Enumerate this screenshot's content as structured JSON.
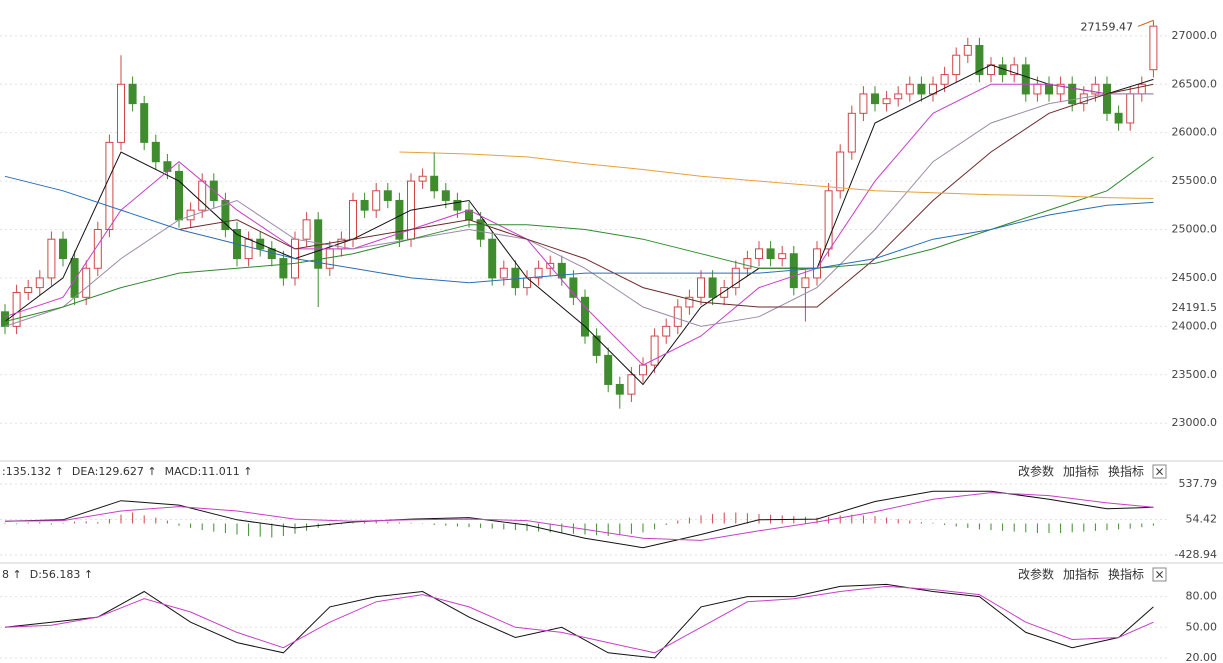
{
  "chart_data": [
    {
      "type": "candlestick",
      "up_color": "#d0474a",
      "down_color": "#3f8c2e",
      "ylim": [
        22620,
        27370
      ],
      "yticks": [
        {
          "value": 23000,
          "label": "23000.0"
        },
        {
          "value": 23500,
          "label": "23500.0"
        },
        {
          "value": 24000,
          "label": "24000.0"
        },
        {
          "value": 24500,
          "label": "24500.0"
        },
        {
          "value": 25000,
          "label": "25000.0"
        },
        {
          "value": 25500,
          "label": "25500.0"
        },
        {
          "value": 26000,
          "label": "26000.0"
        },
        {
          "value": 26500,
          "label": "26500.0"
        },
        {
          "value": 27000,
          "label": "27000.0"
        }
      ],
      "grid": true,
      "open": [
        24150,
        24000,
        24350,
        24400,
        24500,
        24900,
        24700,
        24300,
        24600,
        25000,
        25900,
        26500,
        26300,
        25900,
        25700,
        25600,
        25100,
        25200,
        25500,
        25300,
        25000,
        24700,
        24900,
        24800,
        24700,
        24500,
        24900,
        25100,
        24600,
        24800,
        24900,
        25300,
        25200,
        25400,
        25300,
        24900,
        25500,
        25550,
        25400,
        25300,
        25200,
        25100,
        24900,
        24500,
        24600,
        24400,
        24500,
        24600,
        24650,
        24500,
        24300,
        23900,
        23700,
        23400,
        23300,
        23500,
        23600,
        23900,
        24000,
        24200,
        24300,
        24500,
        24300,
        24400,
        24600,
        24700,
        24800,
        24700,
        24750,
        24400,
        24500,
        24800,
        25400,
        25800,
        26200,
        26400,
        26300,
        26350,
        26400,
        26500,
        26400,
        26500,
        26600,
        26800,
        26900,
        26600,
        26700,
        26600,
        26700,
        26400,
        26500,
        26400,
        26500,
        26300,
        26400,
        26500,
        26200,
        26100,
        26400,
        26650
      ],
      "high": [
        24230,
        24430,
        24480,
        24580,
        24980,
        24980,
        24780,
        24680,
        25080,
        25980,
        26800,
        26580,
        26380,
        25980,
        25780,
        25680,
        25280,
        25580,
        25580,
        25380,
        25080,
        24980,
        24980,
        24880,
        24780,
        24980,
        25180,
        25180,
        24880,
        24980,
        25380,
        25380,
        25480,
        25480,
        25380,
        25580,
        25630,
        25800,
        25480,
        25380,
        25280,
        25180,
        24980,
        24680,
        24680,
        24580,
        24680,
        24730,
        24730,
        24580,
        24380,
        23980,
        23780,
        23480,
        23580,
        23680,
        23980,
        24080,
        24280,
        24380,
        24580,
        24580,
        24480,
        24680,
        24780,
        24880,
        24880,
        24830,
        24830,
        24580,
        24880,
        25480,
        25880,
        26280,
        26480,
        26480,
        26430,
        26480,
        26580,
        26580,
        26580,
        26680,
        26880,
        26980,
        26980,
        26780,
        26780,
        26780,
        26780,
        26580,
        26580,
        26580,
        26580,
        26480,
        26580,
        26580,
        26280,
        26480,
        26580,
        27159.47
      ],
      "low": [
        23920,
        23920,
        24270,
        24320,
        24420,
        24620,
        24220,
        24220,
        24520,
        24920,
        25820,
        26220,
        25820,
        25620,
        25520,
        25020,
        25020,
        25120,
        25220,
        24920,
        24620,
        24620,
        24720,
        24620,
        24420,
        24420,
        24820,
        24200,
        24520,
        24720,
        24820,
        25120,
        25120,
        25220,
        24820,
        24820,
        25420,
        25320,
        25220,
        25120,
        25020,
        24820,
        24420,
        24420,
        24320,
        24320,
        24420,
        24520,
        24420,
        24220,
        23820,
        23620,
        23320,
        23150,
        23220,
        23420,
        23520,
        23820,
        23920,
        24120,
        24220,
        24220,
        24220,
        24320,
        24520,
        24620,
        24620,
        24620,
        24320,
        24050,
        24420,
        24720,
        25320,
        25720,
        26120,
        26220,
        26220,
        26270,
        26320,
        26320,
        26320,
        26420,
        26520,
        26720,
        26520,
        26520,
        26520,
        26520,
        26320,
        26320,
        26320,
        26320,
        26220,
        26220,
        26320,
        26120,
        26020,
        26020,
        26320,
        26570
      ],
      "close": [
        24000,
        24350,
        24400,
        24500,
        24900,
        24700,
        24300,
        24600,
        25000,
        25900,
        26500,
        26300,
        25900,
        25700,
        25600,
        25100,
        25200,
        25500,
        25300,
        25000,
        24700,
        24900,
        24800,
        24700,
        24500,
        24900,
        25100,
        24600,
        24800,
        24900,
        25300,
        25200,
        25400,
        25300,
        24900,
        25500,
        25550,
        25400,
        25300,
        25200,
        25100,
        24900,
        24500,
        24600,
        24400,
        24500,
        24600,
        24650,
        24500,
        24300,
        23900,
        23700,
        23400,
        23300,
        23500,
        23600,
        23900,
        24000,
        24200,
        24300,
        24500,
        24300,
        24400,
        24600,
        24700,
        24800,
        24700,
        24750,
        24400,
        24500,
        24800,
        25400,
        25800,
        26200,
        26400,
        26300,
        26350,
        26400,
        26500,
        26400,
        26500,
        26600,
        26800,
        26900,
        26600,
        26700,
        26600,
        26700,
        26400,
        26500,
        26400,
        26500,
        26300,
        26400,
        26500,
        26200,
        26100,
        26400,
        26500,
        27100
      ],
      "high_label": "27159.47",
      "high_label_color": "#d2691e",
      "price_marker": 24191.5,
      "series": [
        {
          "color": "#111111",
          "x": [
            0,
            5,
            10,
            15,
            20,
            25,
            30,
            35,
            40,
            45,
            50,
            55,
            60,
            65,
            70,
            75,
            80,
            85,
            90,
            95,
            99
          ],
          "values": [
            24050,
            24500,
            25800,
            25500,
            24950,
            24700,
            24900,
            25200,
            25300,
            24500,
            24000,
            23400,
            24200,
            24600,
            24600,
            26100,
            26400,
            26700,
            26500,
            26400,
            26550
          ]
        },
        {
          "color": "#c83fc8",
          "x": [
            0,
            5,
            10,
            15,
            20,
            25,
            30,
            35,
            40,
            45,
            50,
            55,
            60,
            65,
            70,
            75,
            80,
            85,
            90,
            95,
            99
          ],
          "values": [
            24100,
            24300,
            25200,
            25700,
            25200,
            24800,
            24800,
            25000,
            25200,
            24900,
            24200,
            23600,
            23900,
            24400,
            24600,
            25500,
            26200,
            26500,
            26500,
            26400,
            26400
          ]
        },
        {
          "color": "#9c8aa8",
          "x": [
            0,
            5,
            10,
            15,
            20,
            25,
            30,
            35,
            40,
            45,
            50,
            55,
            60,
            65,
            70,
            75,
            80,
            85,
            90,
            95,
            99
          ],
          "values": [
            24000,
            24200,
            24700,
            25100,
            25300,
            24900,
            24800,
            24900,
            25000,
            24900,
            24600,
            24200,
            24000,
            24100,
            24400,
            25000,
            25700,
            26100,
            26300,
            26400,
            26400
          ]
        },
        {
          "color": "#6b2a2a",
          "x": [
            15,
            20,
            25,
            30,
            35,
            40,
            45,
            50,
            55,
            60,
            65,
            70,
            75,
            80,
            85,
            90,
            95,
            99
          ],
          "values": [
            25000,
            25100,
            24800,
            24900,
            25000,
            25100,
            24900,
            24700,
            24400,
            24250,
            24200,
            24200,
            24700,
            25300,
            25800,
            26200,
            26400,
            26500
          ]
        },
        {
          "color": "#2f8a2f",
          "x": [
            0,
            5,
            10,
            15,
            20,
            25,
            30,
            35,
            40,
            45,
            50,
            55,
            60,
            65,
            70,
            75,
            80,
            85,
            90,
            95,
            99
          ],
          "values": [
            24050,
            24200,
            24400,
            24550,
            24600,
            24650,
            24750,
            24900,
            25050,
            25050,
            25000,
            24900,
            24750,
            24600,
            24600,
            24650,
            24800,
            25000,
            25200,
            25400,
            25750
          ]
        },
        {
          "color": "#2a6fb8",
          "x": [
            0,
            5,
            10,
            15,
            20,
            25,
            30,
            35,
            40,
            45,
            50,
            55,
            60,
            65,
            70,
            75,
            80,
            85,
            90,
            95,
            99
          ],
          "values": [
            25550,
            25400,
            25200,
            25000,
            24850,
            24700,
            24600,
            24500,
            24450,
            24500,
            24550,
            24550,
            24550,
            24550,
            24600,
            24700,
            24900,
            25000,
            25150,
            25250,
            25280
          ]
        },
        {
          "color": "#e6a23c",
          "x": [
            34,
            40,
            45,
            50,
            55,
            60,
            65,
            70,
            75,
            80,
            85,
            90,
            95,
            99
          ],
          "values": [
            25800,
            25780,
            25750,
            25680,
            25620,
            25550,
            25500,
            25450,
            25400,
            25380,
            25360,
            25350,
            25330,
            25320
          ]
        }
      ]
    },
    {
      "type": "macd",
      "header": [
        {
          "text": ":135.132 ↑",
          "color": "#111111"
        },
        {
          "text": "DEA:129.627 ↑",
          "color": "#c83fc8"
        },
        {
          "text": "MACD:11.011 ↑",
          "color": "#555555"
        }
      ],
      "buttons": [
        "改参数",
        "加指标",
        "换指标",
        "×"
      ],
      "ylim": [
        -524,
        837
      ],
      "yticks": [
        537.79,
        54.42,
        -428.94
      ],
      "grid": true,
      "up_color": "#d0474a",
      "down_color": "#3f8c2e",
      "values": [
        10,
        -10,
        15,
        20,
        -15,
        10,
        25,
        30,
        20,
        60,
        120,
        150,
        110,
        80,
        40,
        -30,
        -60,
        -90,
        -110,
        -130,
        -150,
        -170,
        -180,
        -190,
        -170,
        -140,
        -100,
        -60,
        -30,
        -10,
        10,
        20,
        30,
        25,
        15,
        10,
        5,
        -20,
        -30,
        -40,
        -50,
        -60,
        -70,
        -80,
        -90,
        -100,
        -110,
        -120,
        -130,
        -140,
        -150,
        -160,
        -170,
        -160,
        -140,
        -120,
        -80,
        -20,
        40,
        80,
        110,
        130,
        150,
        150,
        140,
        130,
        120,
        110,
        100,
        90,
        80,
        90,
        110,
        120,
        110,
        100,
        80,
        60,
        40,
        20,
        10,
        -20,
        -40,
        -60,
        -80,
        -90,
        -100,
        -110,
        -120,
        -130,
        -130,
        -130,
        -120,
        -110,
        -100,
        -90,
        -80,
        -70,
        -50,
        -30
      ],
      "series": [
        {
          "color": "#111111",
          "x": [
            0,
            5,
            10,
            15,
            20,
            25,
            30,
            35,
            40,
            45,
            50,
            55,
            60,
            65,
            70,
            75,
            80,
            85,
            90,
            95,
            99
          ],
          "values": [
            30,
            50,
            310,
            250,
            50,
            -60,
            20,
            60,
            80,
            -20,
            -200,
            -330,
            -150,
            50,
            60,
            300,
            440,
            440,
            330,
            200,
            220
          ]
        },
        {
          "color": "#c83fc8",
          "x": [
            0,
            5,
            10,
            15,
            20,
            25,
            30,
            35,
            40,
            45,
            50,
            55,
            60,
            65,
            70,
            75,
            80,
            85,
            90,
            95,
            99
          ],
          "values": [
            30,
            40,
            170,
            230,
            170,
            60,
            30,
            50,
            60,
            40,
            -80,
            -200,
            -230,
            -100,
            20,
            160,
            330,
            420,
            380,
            280,
            220
          ]
        }
      ]
    },
    {
      "type": "line",
      "header": [
        {
          "text": "8 ↑",
          "color": "#111111"
        },
        {
          "text": "D:56.183 ↑",
          "color": "#c83fc8"
        }
      ],
      "buttons": [
        "改参数",
        "加指标",
        "换指标",
        "×"
      ],
      "ylim": [
        15,
        111
      ],
      "yticks": [
        {
          "value": 80,
          "label": "80.00"
        },
        {
          "value": 50,
          "label": "50.00"
        },
        {
          "value": 20,
          "label": "20.00"
        }
      ],
      "grid": true,
      "series": [
        {
          "color": "#111111",
          "x": [
            0,
            4,
            8,
            12,
            16,
            20,
            24,
            28,
            32,
            36,
            40,
            44,
            48,
            52,
            56,
            60,
            64,
            68,
            72,
            76,
            80,
            84,
            88,
            92,
            96,
            99
          ],
          "values": [
            50,
            55,
            60,
            85,
            55,
            35,
            25,
            70,
            80,
            85,
            60,
            40,
            50,
            25,
            20,
            70,
            80,
            80,
            90,
            92,
            85,
            80,
            45,
            30,
            40,
            70
          ]
        },
        {
          "color": "#c83fc8",
          "x": [
            0,
            4,
            8,
            12,
            16,
            20,
            24,
            28,
            32,
            36,
            40,
            44,
            48,
            52,
            56,
            60,
            64,
            68,
            72,
            76,
            80,
            84,
            88,
            92,
            96,
            99
          ],
          "values": [
            50,
            52,
            60,
            78,
            65,
            45,
            30,
            55,
            75,
            82,
            70,
            50,
            45,
            35,
            25,
            50,
            75,
            78,
            85,
            90,
            87,
            82,
            55,
            38,
            40,
            55
          ]
        }
      ]
    }
  ]
}
